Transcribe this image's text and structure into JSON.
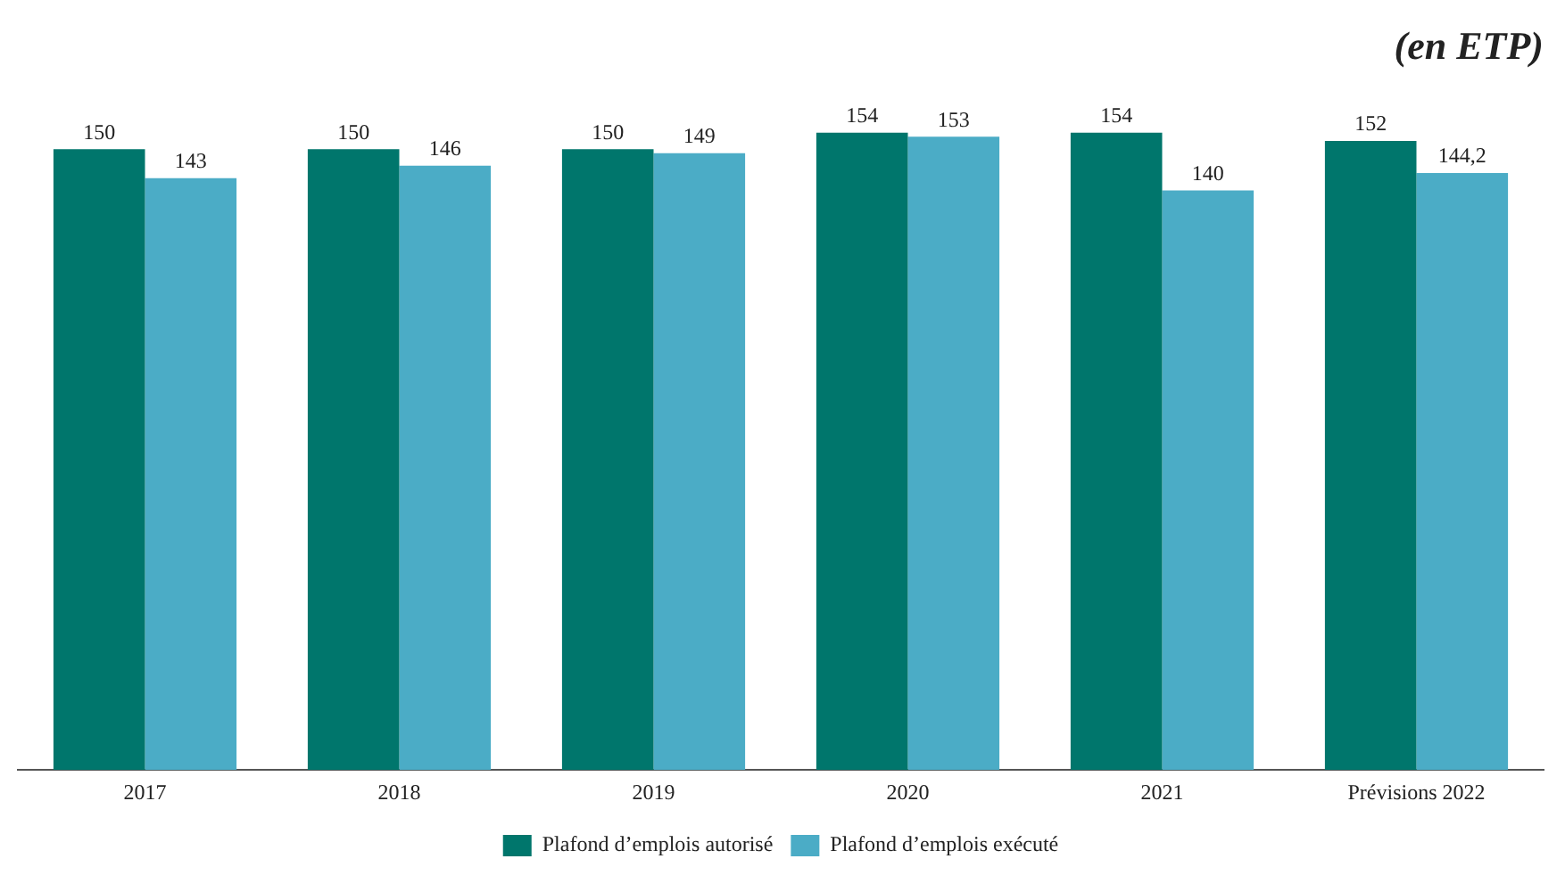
{
  "chart_data": {
    "type": "bar",
    "title": "(en ETP)",
    "categories": [
      "2017",
      "2018",
      "2019",
      "2020",
      "2021",
      "Prévisions 2022"
    ],
    "series": [
      {
        "name": "Plafond d’emplois autorisé",
        "color": "#00766c",
        "values": [
          150,
          150,
          150,
          154,
          154,
          152
        ],
        "value_labels": [
          "150",
          "150",
          "150",
          "154",
          "154",
          "152"
        ]
      },
      {
        "name": "Plafond d’emplois exécuté",
        "color": "#4bacc6",
        "values": [
          143,
          146,
          149,
          153,
          140,
          144.2
        ],
        "value_labels": [
          "143",
          "146",
          "149",
          "153",
          "140",
          "144,2"
        ]
      }
    ],
    "legend": "bottom",
    "grid": false
  }
}
